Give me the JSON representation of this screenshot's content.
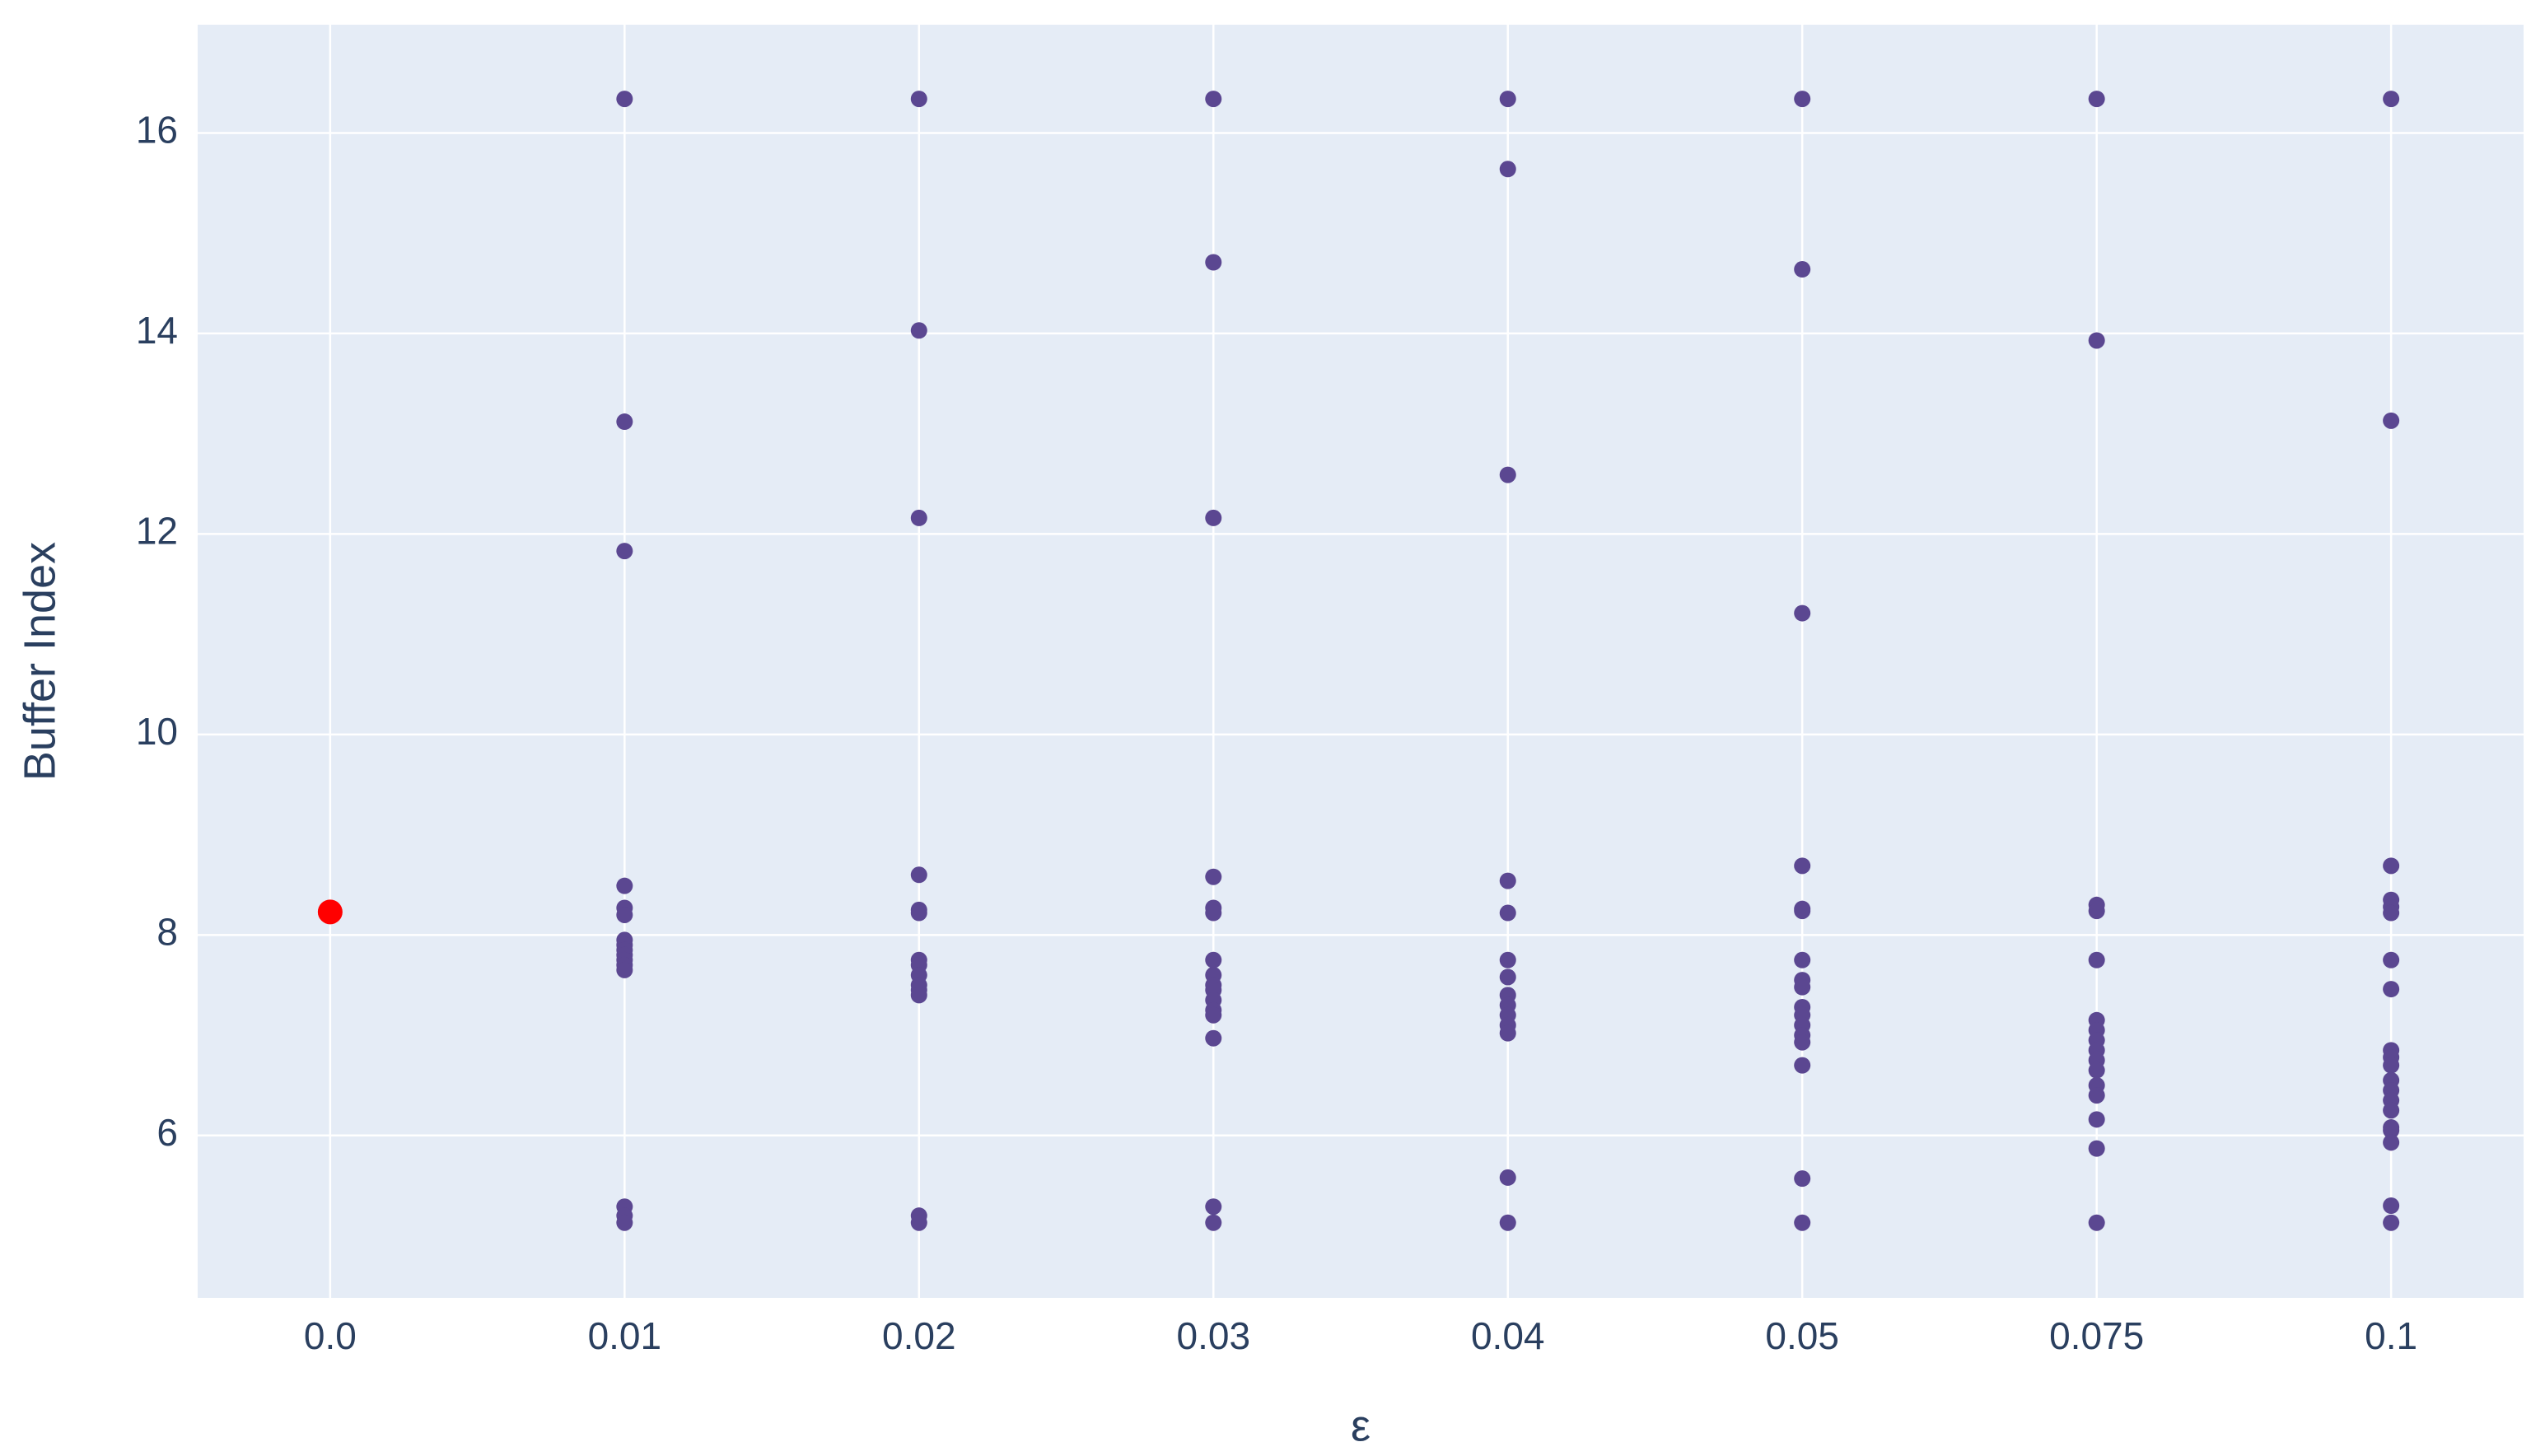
{
  "chart_data": {
    "type": "scatter",
    "x_label": "ε",
    "y_label": "Buffer Index",
    "categories": [
      "0.0",
      "0.01",
      "0.02",
      "0.03",
      "0.04",
      "0.05",
      "0.075",
      "0.1"
    ],
    "values": [
      [
        8.23
      ],
      [
        16.34,
        13.12,
        11.83,
        8.49,
        8.27,
        8.2,
        7.95,
        7.9,
        7.85,
        7.8,
        7.75,
        7.7,
        7.65,
        5.29,
        5.2,
        5.13
      ],
      [
        16.34,
        14.03,
        12.16,
        8.6,
        8.25,
        8.22,
        7.75,
        7.7,
        7.6,
        7.5,
        7.45,
        7.4,
        5.2,
        5.13
      ],
      [
        16.34,
        14.71,
        12.16,
        8.58,
        8.27,
        8.22,
        7.75,
        7.6,
        7.5,
        7.45,
        7.35,
        7.25,
        7.2,
        6.97,
        5.29,
        5.13
      ],
      [
        16.34,
        15.64,
        12.59,
        8.54,
        8.22,
        7.75,
        7.58,
        7.4,
        7.3,
        7.2,
        7.1,
        7.02,
        5.58,
        5.13
      ],
      [
        16.34,
        14.64,
        11.21,
        8.69,
        8.26,
        8.24,
        7.75,
        7.55,
        7.48,
        7.28,
        7.2,
        7.1,
        7.0,
        6.93,
        6.7,
        5.57,
        5.13
      ],
      [
        16.34,
        13.93,
        8.3,
        8.24,
        7.75,
        7.15,
        7.05,
        6.95,
        6.85,
        6.75,
        6.65,
        6.5,
        6.4,
        6.16,
        5.87,
        5.13
      ],
      [
        16.34,
        13.13,
        8.69,
        8.35,
        8.28,
        8.22,
        7.75,
        7.46,
        6.85,
        6.78,
        6.7,
        6.55,
        6.45,
        6.35,
        6.25,
        6.08,
        6.05,
        5.93,
        5.3,
        5.13
      ]
    ],
    "colors": [
      "#ff0000",
      "#5b4791",
      "#5b4791",
      "#5b4791",
      "#5b4791",
      "#5b4791",
      "#5b4791",
      "#5b4791"
    ],
    "marker_sizes": [
      15,
      10,
      10,
      10,
      10,
      10,
      10,
      10
    ],
    "ylim": [
      4.38,
      17.08
    ],
    "yticks": [
      6,
      8,
      10,
      12,
      14,
      16
    ],
    "grid": true
  }
}
